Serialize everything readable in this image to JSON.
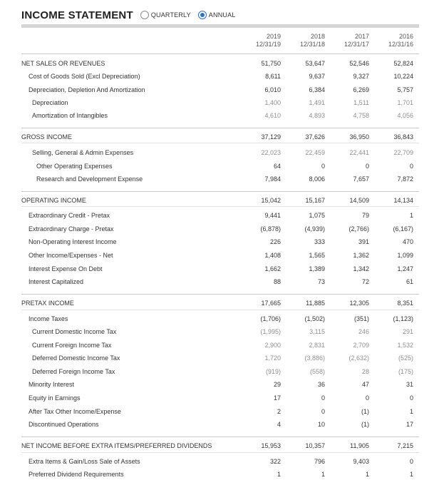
{
  "header": {
    "title": "INCOME STATEMENT",
    "radio_quarterly": "QUARTERLY",
    "radio_annual": "ANNUAL",
    "selected": "annual"
  },
  "columns": [
    {
      "year": "2019",
      "date": "12/31/19"
    },
    {
      "year": "2018",
      "date": "12/31/18"
    },
    {
      "year": "2017",
      "date": "12/31/17"
    },
    {
      "year": "2016",
      "date": "12/31/16"
    }
  ],
  "rows": [
    {
      "label": "NET SALES OR REVENUES",
      "values": [
        "51,750",
        "53,647",
        "52,546",
        "52,824"
      ]
    },
    {
      "label": "Cost of Goods Sold (Excl Depreciation)",
      "values": [
        "8,611",
        "9,637",
        "9,327",
        "10,224"
      ]
    },
    {
      "label": "Depreciation, Depletion And Amortization",
      "values": [
        "6,010",
        "6,384",
        "6,269",
        "5,757"
      ]
    },
    {
      "label": "Depreciation",
      "values": [
        "1,400",
        "1,491",
        "1,511",
        "1,701"
      ]
    },
    {
      "label": "Amortization of Intangibles",
      "values": [
        "4,610",
        "4,893",
        "4,758",
        "4,056"
      ]
    },
    {
      "label": "GROSS INCOME",
      "values": [
        "37,129",
        "37,626",
        "36,950",
        "36,843"
      ]
    },
    {
      "label": "Selling, General & Admin Expenses",
      "values": [
        "22,023",
        "22,459",
        "22,441",
        "22,709"
      ]
    },
    {
      "label": "Other Operating Expenses",
      "values": [
        "64",
        "0",
        "0",
        "0"
      ]
    },
    {
      "label": "Research and Development Expense",
      "values": [
        "7,984",
        "8,006",
        "7,657",
        "7,872"
      ]
    },
    {
      "label": "OPERATING INCOME",
      "values": [
        "15,042",
        "15,167",
        "14,509",
        "14,134"
      ]
    },
    {
      "label": "Extraordinary Credit - Pretax",
      "values": [
        "9,441",
        "1,075",
        "79",
        "1"
      ]
    },
    {
      "label": "Extraordinary Charge - Pretax",
      "values": [
        "(6,878)",
        "(4,939)",
        "(2,766)",
        "(6,167)"
      ]
    },
    {
      "label": "Non-Operating Interest Income",
      "values": [
        "226",
        "333",
        "391",
        "470"
      ]
    },
    {
      "label": "Other Income/Expenses - Net",
      "values": [
        "1,408",
        "1,565",
        "1,362",
        "1,099"
      ]
    },
    {
      "label": "Interest Expense On Debt",
      "values": [
        "1,662",
        "1,389",
        "1,342",
        "1,247"
      ]
    },
    {
      "label": "Interest Capitalized",
      "values": [
        "88",
        "73",
        "72",
        "61"
      ]
    },
    {
      "label": "PRETAX INCOME",
      "values": [
        "17,665",
        "11,885",
        "12,305",
        "8,351"
      ]
    },
    {
      "label": "Income Taxes",
      "values": [
        "(1,706)",
        "(1,502)",
        "(351)",
        "(1,123)"
      ]
    },
    {
      "label": "Current Domestic Income Tax",
      "values": [
        "(1,995)",
        "3,115",
        "246",
        "291"
      ]
    },
    {
      "label": "Current Foreign Income Tax",
      "values": [
        "2,900",
        "2,831",
        "2,709",
        "1,532"
      ]
    },
    {
      "label": "Deferred Domestic Income Tax",
      "values": [
        "1,720",
        "(3,886)",
        "(2,632)",
        "(525)"
      ]
    },
    {
      "label": "Deferred Foreign Income Tax",
      "values": [
        "(919)",
        "(558)",
        "28",
        "(175)"
      ]
    },
    {
      "label": "Minority Interest",
      "values": [
        "29",
        "36",
        "47",
        "31"
      ]
    },
    {
      "label": "Equity in Earnings",
      "values": [
        "17",
        "0",
        "0",
        "0"
      ]
    },
    {
      "label": "After Tax Other Income/Expense",
      "values": [
        "2",
        "0",
        "(1)",
        "1"
      ]
    },
    {
      "label": "Discontinued Operations",
      "values": [
        "4",
        "10",
        "(1)",
        "17"
      ]
    },
    {
      "label": "NET INCOME BEFORE EXTRA ITEMS/PREFERRED DIVIDENDS",
      "values": [
        "15,953",
        "10,357",
        "11,905",
        "7,215"
      ]
    },
    {
      "label": "Extra Items & Gain/Loss Sale of Assets",
      "values": [
        "322",
        "796",
        "9,403",
        "0"
      ]
    },
    {
      "label": "Preferred Dividend Requirements",
      "values": [
        "1",
        "1",
        "1",
        "1"
      ]
    }
  ]
}
